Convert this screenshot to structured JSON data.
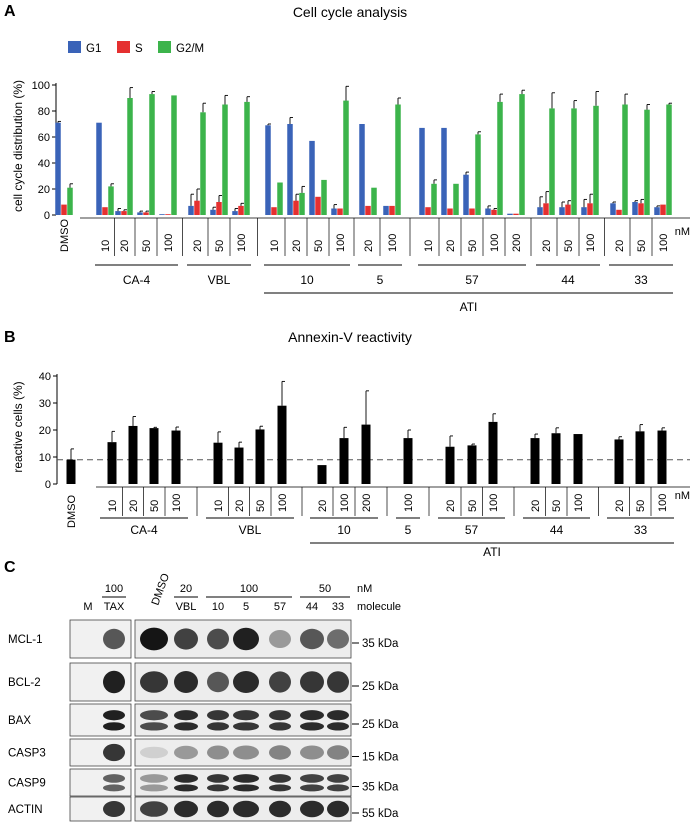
{
  "panel_letters": {
    "a": "A",
    "b": "B",
    "c": "C"
  },
  "chart_data": [
    {
      "type": "bar",
      "title": "Cell cycle analysis",
      "ylabel": "cell cycle distribution (%)",
      "ylim": [
        0,
        100
      ],
      "yticks": [
        0,
        20,
        40,
        60,
        80,
        100
      ],
      "unit": "nM",
      "control": "DMSO",
      "categories": [
        "DMSO",
        "10",
        "20",
        "50",
        "100",
        "20",
        "50",
        "100",
        "10",
        "20",
        "50",
        "100",
        "20",
        "100",
        "10",
        "20",
        "50",
        "100",
        "200",
        "20",
        "50",
        "100",
        "20",
        "50",
        "100"
      ],
      "series": [
        {
          "name": "G1",
          "color": "#3a63b8",
          "values": [
            71,
            71,
            3,
            2,
            0,
            7,
            4,
            3,
            69,
            70,
            57,
            5,
            70,
            7,
            67,
            67,
            31,
            5,
            1,
            6,
            6,
            6,
            9,
            10,
            6
          ],
          "errors": [
            1,
            0,
            2,
            1,
            0,
            9,
            2,
            2,
            1,
            5,
            0,
            3,
            0,
            0,
            0,
            0,
            2,
            2,
            0,
            8,
            4,
            6,
            1,
            1,
            1
          ]
        },
        {
          "name": "S",
          "color": "#e53030",
          "values": [
            8,
            6,
            3,
            2,
            0,
            11,
            10,
            7,
            6,
            11,
            14,
            5,
            7,
            7,
            6,
            5,
            5,
            4,
            1,
            9,
            8,
            9,
            4,
            9,
            8
          ],
          "errors": [
            0,
            0,
            1,
            1,
            0,
            9,
            5,
            2,
            0,
            5,
            0,
            0,
            0,
            0,
            0,
            0,
            0,
            1,
            0,
            9,
            3,
            7,
            0,
            3,
            0
          ]
        },
        {
          "name": "G2/M",
          "color": "#3cb44b",
          "values": [
            21,
            22,
            90,
            93,
            92,
            79,
            85,
            87,
            25,
            17,
            27,
            88,
            21,
            85,
            24,
            24,
            62,
            87,
            93,
            82,
            82,
            84,
            85,
            81,
            85
          ],
          "errors": [
            3,
            2,
            8,
            2,
            0,
            7,
            7,
            4,
            0,
            5,
            0,
            11,
            0,
            5,
            3,
            0,
            2,
            6,
            3,
            12,
            6,
            11,
            8,
            4,
            1
          ]
        }
      ],
      "groups": [
        {
          "label": "CA-4",
          "start": 1,
          "end": 4
        },
        {
          "label": "VBL",
          "start": 5,
          "end": 7
        },
        {
          "label": "10",
          "start": 8,
          "end": 11
        },
        {
          "label": "5",
          "start": 12,
          "end": 13
        },
        {
          "label": "57",
          "start": 14,
          "end": 18
        },
        {
          "label": "44",
          "start": 19,
          "end": 21
        },
        {
          "label": "33",
          "start": 22,
          "end": 24
        }
      ],
      "supergroup": {
        "label": "ATI",
        "start": 8,
        "end": 24
      }
    },
    {
      "type": "bar",
      "title": "Annexin-V reactivity",
      "ylabel": "reactive cells (%)",
      "ylim": [
        0,
        40
      ],
      "yticks": [
        0,
        10,
        20,
        30,
        40
      ],
      "unit": "nM",
      "reference_line": 9,
      "control": "DMSO",
      "categories": [
        "DMSO",
        "10",
        "20",
        "50",
        "100",
        "10",
        "20",
        "50",
        "100",
        "20",
        "100",
        "200",
        "100",
        "20",
        "50",
        "100",
        "20",
        "50",
        "100",
        "20",
        "50",
        "100"
      ],
      "series": [
        {
          "name": "reactive cells",
          "color": "#000000",
          "values": [
            9,
            15.5,
            21.5,
            20.7,
            19.8,
            15.3,
            13.5,
            20.2,
            29,
            7,
            17,
            22,
            17,
            13.8,
            14.3,
            23,
            17,
            18.8,
            18.5,
            16.5,
            19.5,
            19.8
          ],
          "errors": [
            4,
            4,
            3.5,
            0.3,
            1.3,
            4,
            2,
            1.2,
            9,
            0,
            4,
            12.5,
            3,
            4,
            0.5,
            3,
            1.5,
            2,
            0,
            1,
            2.5,
            1
          ]
        }
      ],
      "groups": [
        {
          "label": "CA-4",
          "start": 1,
          "end": 4
        },
        {
          "label": "VBL",
          "start": 5,
          "end": 8
        },
        {
          "label": "10",
          "start": 9,
          "end": 11
        },
        {
          "label": "5",
          "start": 12,
          "end": 12
        },
        {
          "label": "57",
          "start": 13,
          "end": 15
        },
        {
          "label": "44",
          "start": 16,
          "end": 18
        },
        {
          "label": "33",
          "start": 19,
          "end": 21
        }
      ],
      "supergroup": {
        "label": "ATI",
        "start": 9,
        "end": 21
      }
    }
  ],
  "blot": {
    "unit": "nM",
    "concentrations": [
      {
        "label": "100",
        "lanes": [
          1,
          1
        ]
      },
      {
        "label": "20",
        "lanes": [
          3,
          3
        ]
      },
      {
        "label": "100",
        "lanes": [
          4,
          6
        ]
      },
      {
        "label": "50",
        "lanes": [
          7,
          8
        ]
      }
    ],
    "molecule_label": "molecule",
    "lanes": [
      "M",
      "TAX",
      "DMSO",
      "VBL",
      "10",
      "5",
      "57",
      "44",
      "33"
    ],
    "rows": [
      {
        "name": "MCL-1",
        "marker": "35 kDa",
        "intensity": [
          0.05,
          0.65,
          0.95,
          0.75,
          0.7,
          0.9,
          0.35,
          0.65,
          0.55
        ]
      },
      {
        "name": "BCL-2",
        "marker": "25 kDa",
        "intensity": [
          0.05,
          0.9,
          0.8,
          0.85,
          0.65,
          0.85,
          0.75,
          0.8,
          0.8
        ]
      },
      {
        "name": "BAX",
        "marker": "25 kDa",
        "intensity": [
          0.05,
          0.9,
          0.7,
          0.85,
          0.8,
          0.8,
          0.8,
          0.85,
          0.85
        ]
      },
      {
        "name": "CASP3",
        "marker": "15 kDa",
        "intensity": [
          0.05,
          0.8,
          0.1,
          0.35,
          0.4,
          0.4,
          0.45,
          0.4,
          0.45
        ]
      },
      {
        "name": "CASP9",
        "marker": "35 kDa",
        "intensity": [
          0.05,
          0.6,
          0.35,
          0.85,
          0.8,
          0.85,
          0.8,
          0.75,
          0.75
        ]
      },
      {
        "name": "ACTIN",
        "marker": "55 kDa",
        "intensity": [
          0.05,
          0.8,
          0.75,
          0.85,
          0.85,
          0.85,
          0.85,
          0.85,
          0.85
        ]
      }
    ]
  }
}
